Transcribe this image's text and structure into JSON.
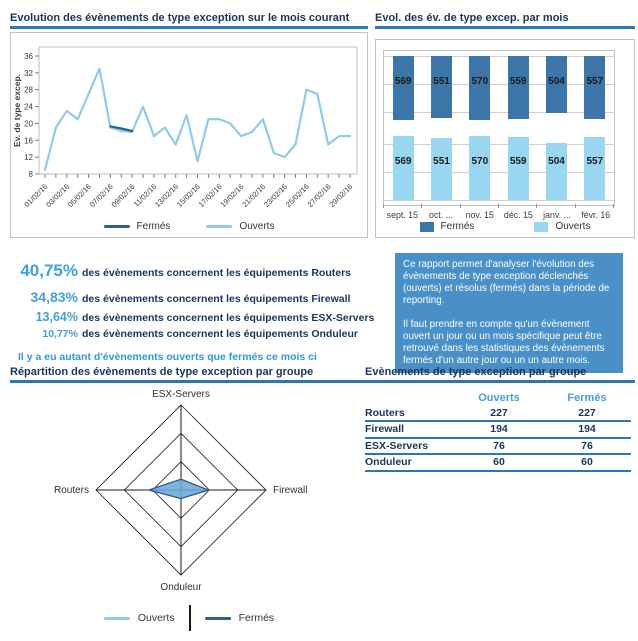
{
  "colors": {
    "navy": "#17365D",
    "accent_blue": "#41A0DB",
    "rule_blue": "#2E75B6",
    "dark_series": "#3C76A8",
    "dark_line": "#2E6090",
    "light_series": "#99D6F2",
    "light_line": "#8FCBEA",
    "info_box_bg": "#4A90C8"
  },
  "chart_data": [
    {
      "type": "line",
      "title": "Evolution des évènements de type exception sur le mois courant",
      "ylabel": "Ev. de type excep.",
      "ylim": [
        8,
        36
      ],
      "yticks": [
        8,
        12,
        16,
        20,
        24,
        28,
        32,
        36
      ],
      "x_points": 29,
      "x_tick_labels": [
        "01/02/16",
        "03/02/16",
        "05/02/16",
        "07/02/16",
        "09/02/16",
        "11/02/16",
        "13/02/16",
        "15/02/16",
        "17/02/16",
        "19/02/16",
        "21/02/16",
        "23/02/16",
        "25/02/16",
        "27/02/16",
        "29/02/16"
      ],
      "grid": false,
      "legend_position": "bottom",
      "series": [
        {
          "name": "Fermés",
          "color_key": "dark_line",
          "start_index": 6,
          "values": [
            19.3,
            18.8,
            18.2
          ]
        },
        {
          "name": "Ouverts",
          "color_key": "light_line",
          "start_index": 0,
          "values": [
            9,
            19,
            23,
            21,
            27,
            33,
            19,
            18.2,
            18,
            24,
            17,
            19,
            15,
            22,
            11,
            21,
            21,
            20,
            17,
            18,
            21,
            13,
            12,
            15,
            28,
            27,
            15,
            17,
            17
          ]
        }
      ]
    },
    {
      "type": "bar",
      "title": "Evol. des év. de type excep. par mois",
      "categories": [
        "sept. 15",
        "oct. ...",
        "nov. 15",
        "déc. 15",
        "janv. ...",
        "févr. 16"
      ],
      "panel_layout": "one band per series, dark bars hang from top gridline, light bars rise from baseline",
      "value_labels": true,
      "legend_position": "bottom",
      "series": [
        {
          "name": "Fermés",
          "color_key": "dark_series",
          "values": [
            569,
            551,
            570,
            559,
            504,
            557
          ]
        },
        {
          "name": "Ouverts",
          "color_key": "light_series",
          "values": [
            569,
            551,
            570,
            559,
            504,
            557
          ]
        }
      ]
    },
    {
      "type": "radar",
      "title": "Répartition des évènements de type exception par groupe",
      "axes": [
        "ESX-Servers",
        "Firewall",
        "Onduleur",
        "Routers"
      ],
      "max_value": 600,
      "rings": 3,
      "legend_position": "bottom",
      "series": [
        {
          "name": "Ouverts",
          "color_key": "light_line",
          "values": [
            76,
            194,
            60,
            227
          ]
        },
        {
          "name": "Fermés",
          "color_key": "dark_line",
          "values": [
            76,
            194,
            60,
            227
          ]
        }
      ]
    },
    {
      "type": "table",
      "title": "Evènements de type exception par groupe",
      "columns": [
        "",
        "Ouverts",
        "Fermés"
      ],
      "rows": [
        [
          "Routers",
          "227",
          "227"
        ],
        [
          "Firewall",
          "194",
          "194"
        ],
        [
          "ESX-Servers",
          "76",
          "76"
        ],
        [
          "Onduleur",
          "60",
          "60"
        ]
      ]
    }
  ],
  "stats": {
    "items": [
      {
        "pct": "40,75%",
        "text": "des évènements concernent les équipements",
        "equipment": "Routers"
      },
      {
        "pct": "34,83%",
        "text": "des évènements concernent les équipements",
        "equipment": "Firewall"
      },
      {
        "pct": "13,64%",
        "text": "des évènements concernent les équipements",
        "equipment": "ESX-Servers"
      },
      {
        "pct": "10,77%",
        "text": "des évènements concernent les équipements",
        "equipment": "Onduleur"
      }
    ],
    "note": "Il y a eu autant d'évènements ouverts que fermés ce mois ci"
  },
  "info_box": {
    "paragraph1": "Ce rapport permet d'analyser l'évolution des évènements de type exception déclenchés (ouverts) et résolus (fermés) dans la période de reporting.",
    "paragraph2": "Il faut prendre en compte qu'un évènement ouvert un jour ou un mois spécifique peut être retrouvé dans les statistiques des évènements fermés d'un autre jour ou un un autre mois."
  }
}
